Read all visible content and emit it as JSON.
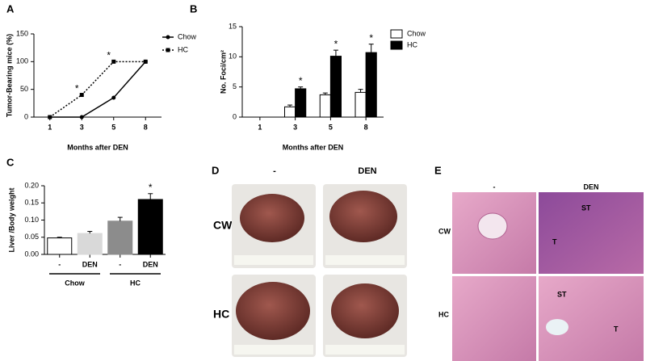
{
  "chart_data": [
    {
      "type": "line",
      "panel": "A",
      "ylabel": "Tumor-Bearing mice (%)",
      "xlabel": "Months after DEN",
      "categories": [
        "1",
        "3",
        "5",
        "8"
      ],
      "ylim": [
        0,
        150
      ],
      "yticks": [
        0,
        50,
        100,
        150
      ],
      "legend": "top-right",
      "series": [
        {
          "name": "Chow",
          "color": "#000000",
          "marker": "circle",
          "dash": "solid",
          "values": [
            0,
            0,
            35,
            100
          ],
          "significance": [
            null,
            null,
            null,
            null
          ]
        },
        {
          "name": "HC",
          "color": "#000000",
          "marker": "square",
          "dash": "dotted",
          "values": [
            0,
            40,
            100,
            100
          ],
          "significance": [
            null,
            "*",
            "*",
            null
          ]
        }
      ]
    },
    {
      "type": "bar",
      "panel": "B",
      "ylabel": "No. Foci/cm²",
      "xlabel": "Months after DEN",
      "categories": [
        "1",
        "3",
        "5",
        "8"
      ],
      "ylim": [
        0,
        15
      ],
      "yticks": [
        0,
        5,
        10,
        15
      ],
      "legend": "top-right",
      "series": [
        {
          "name": "Chow",
          "color": "#ffffff",
          "values": [
            0,
            1.7,
            3.7,
            4.1
          ],
          "errors": [
            0,
            0.3,
            0.3,
            0.5
          ],
          "significance": [
            null,
            null,
            null,
            null
          ]
        },
        {
          "name": "HC",
          "color": "#000000",
          "values": [
            0,
            4.7,
            10.1,
            10.7
          ],
          "errors": [
            0,
            0.3,
            1.0,
            1.4
          ],
          "significance": [
            null,
            "*",
            "*",
            "*"
          ]
        }
      ]
    },
    {
      "type": "bar",
      "panel": "C",
      "ylabel": "Liver /Body weight",
      "categories": [
        "-",
        "DEN",
        "-",
        "DEN"
      ],
      "groups": [
        "Chow",
        "HC"
      ],
      "ylim": [
        0,
        0.2
      ],
      "yticks": [
        {
          "value": 0,
          "label": "0.00"
        },
        {
          "value": 0.05,
          "label": "0.05"
        },
        {
          "value": 0.1,
          "label": "0.10"
        },
        {
          "value": 0.15,
          "label": "0.15"
        },
        {
          "value": 0.2,
          "label": "0.20"
        }
      ],
      "values": [
        0.048,
        0.061,
        0.097,
        0.16
      ],
      "errors": [
        0.002,
        0.006,
        0.011,
        0.017
      ],
      "colors": [
        "#ffffff",
        "#d9d9d9",
        "#8c8c8c",
        "#000000"
      ],
      "significance": [
        null,
        null,
        null,
        "*"
      ]
    }
  ],
  "photo_panels": [
    {
      "letter": "D",
      "columns": [
        "-",
        "DEN"
      ],
      "rows": [
        "CW",
        "HC"
      ]
    },
    {
      "letter": "E",
      "columns": [
        "-",
        "DEN"
      ],
      "rows": [
        "CW",
        "HC"
      ],
      "labels": [
        "ST",
        "T",
        "ST",
        "T"
      ]
    }
  ]
}
